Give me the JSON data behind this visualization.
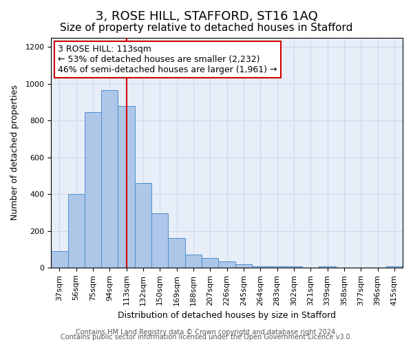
{
  "title": "3, ROSE HILL, STAFFORD, ST16 1AQ",
  "subtitle": "Size of property relative to detached houses in Stafford",
  "xlabel": "Distribution of detached houses by size in Stafford",
  "ylabel": "Number of detached properties",
  "categories": [
    "37sqm",
    "56sqm",
    "75sqm",
    "94sqm",
    "113sqm",
    "132sqm",
    "150sqm",
    "169sqm",
    "188sqm",
    "207sqm",
    "226sqm",
    "245sqm",
    "264sqm",
    "283sqm",
    "302sqm",
    "321sqm",
    "339sqm",
    "358sqm",
    "377sqm",
    "396sqm",
    "415sqm"
  ],
  "values": [
    90,
    400,
    845,
    965,
    880,
    460,
    295,
    160,
    72,
    52,
    35,
    20,
    8,
    8,
    8,
    0,
    8,
    0,
    0,
    0,
    8
  ],
  "bar_color": "#aec6e8",
  "bar_edge_color": "#4d8fcc",
  "highlight_color": "#cc0000",
  "annotation_line1": "3 ROSE HILL: 113sqm",
  "annotation_line2": "← 53% of detached houses are smaller (2,232)",
  "annotation_line3": "46% of semi-detached houses are larger (1,961) →",
  "annotation_box_color": "#ffffff",
  "annotation_box_edge_color": "#cc0000",
  "ylim": [
    0,
    1250
  ],
  "yticks": [
    0,
    200,
    400,
    600,
    800,
    1000,
    1200
  ],
  "grid_color": "#d0d8e8",
  "bg_color": "#e8eef8",
  "footnote1": "Contains HM Land Registry data © Crown copyright and database right 2024.",
  "footnote2": "Contains public sector information licensed under the Open Government Licence v3.0.",
  "title_fontsize": 13,
  "subtitle_fontsize": 11,
  "axis_label_fontsize": 9,
  "tick_fontsize": 8,
  "annotation_fontsize": 9,
  "footnote_fontsize": 7
}
